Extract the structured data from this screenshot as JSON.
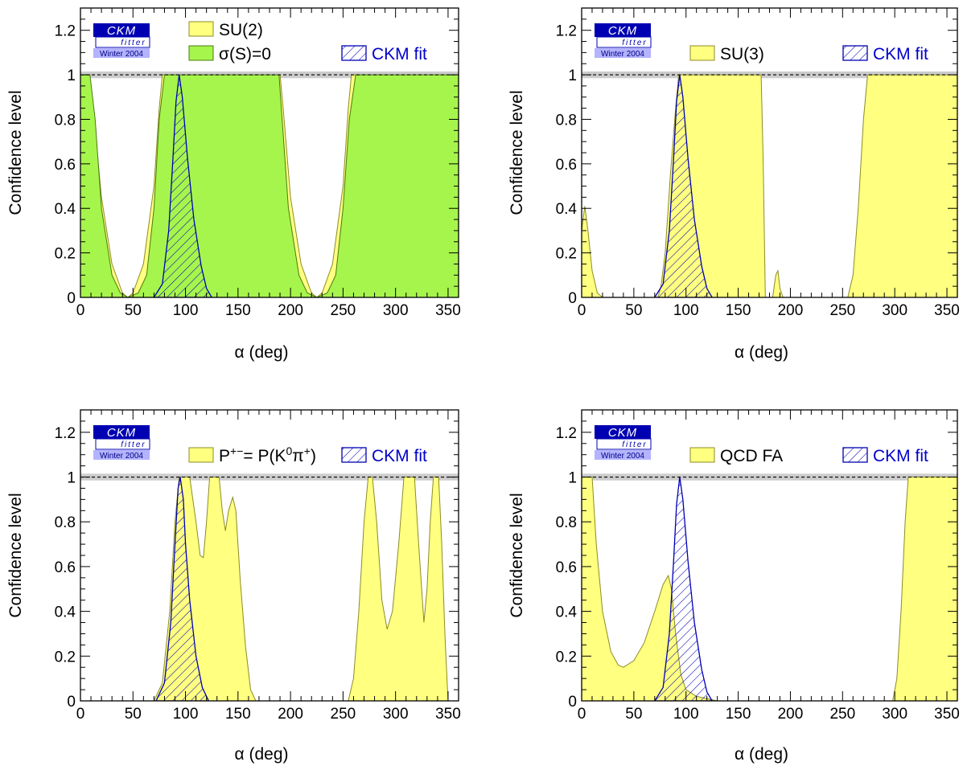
{
  "colors": {
    "su_fill": "#ffff80",
    "su_stroke": "#8c8c26",
    "green_fill": "#a6f54c",
    "green_stroke": "#4a7a10",
    "ckm_stroke": "#0000b3",
    "ckm_text": "#0000cc",
    "band": "#cccccc",
    "logo_bg": "#0000b3",
    "logo_light": "#b3b3ff"
  },
  "logo": {
    "main": "CKM",
    "sub": "fitter",
    "year": "Winter 2004"
  },
  "chart_data": [
    {
      "type": "area",
      "panel": "top-left",
      "xlabel": "α    (deg)",
      "ylabel": "Confidence level",
      "xlim": [
        0,
        360
      ],
      "ylim": [
        0,
        1.3
      ],
      "xticks": [
        0,
        50,
        100,
        150,
        200,
        250,
        300,
        350
      ],
      "yticks": [
        0,
        0.2,
        0.4,
        0.6,
        0.8,
        1,
        1.2
      ],
      "series": [
        {
          "name": "SU(2)",
          "style": "yellow",
          "points": [
            [
              0,
              1
            ],
            [
              8,
              1
            ],
            [
              12,
              0.85
            ],
            [
              20,
              0.45
            ],
            [
              30,
              0.15
            ],
            [
              40,
              0.02
            ],
            [
              45,
              0
            ],
            [
              50,
              0.02
            ],
            [
              60,
              0.15
            ],
            [
              70,
              0.5
            ],
            [
              75,
              0.85
            ],
            [
              78,
              1
            ],
            [
              190,
              1
            ],
            [
              193,
              0.85
            ],
            [
              200,
              0.45
            ],
            [
              210,
              0.15
            ],
            [
              220,
              0.02
            ],
            [
              225,
              0
            ],
            [
              230,
              0.02
            ],
            [
              240,
              0.15
            ],
            [
              250,
              0.5
            ],
            [
              255,
              0.85
            ],
            [
              258,
              1
            ],
            [
              360,
              1
            ]
          ]
        },
        {
          "name": "σ(S)=0",
          "style": "green",
          "points": [
            [
              0,
              1
            ],
            [
              9,
              1
            ],
            [
              14,
              0.8
            ],
            [
              20,
              0.4
            ],
            [
              30,
              0.1
            ],
            [
              38,
              0.02
            ],
            [
              45,
              0
            ],
            [
              55,
              0.02
            ],
            [
              63,
              0.1
            ],
            [
              70,
              0.4
            ],
            [
              75,
              0.8
            ],
            [
              80,
              1
            ],
            [
              189,
              1
            ],
            [
              192,
              0.8
            ],
            [
              198,
              0.4
            ],
            [
              208,
              0.1
            ],
            [
              216,
              0.02
            ],
            [
              225,
              0
            ],
            [
              235,
              0.02
            ],
            [
              243,
              0.1
            ],
            [
              250,
              0.4
            ],
            [
              256,
              0.8
            ],
            [
              262,
              1
            ],
            [
              360,
              1
            ]
          ]
        },
        {
          "name": "CKM fit",
          "style": "ckm",
          "points": [
            [
              70,
              0
            ],
            [
              78,
              0.06
            ],
            [
              84,
              0.3
            ],
            [
              88,
              0.62
            ],
            [
              91,
              0.88
            ],
            [
              94,
              1
            ],
            [
              97,
              0.9
            ],
            [
              102,
              0.62
            ],
            [
              108,
              0.35
            ],
            [
              115,
              0.14
            ],
            [
              120,
              0.04
            ],
            [
              125,
              0
            ]
          ]
        }
      ],
      "legend": [
        {
          "label": "SU(2)",
          "style": "yellow",
          "pos": "top-center-1"
        },
        {
          "label": "σ(S)=0",
          "style": "green",
          "pos": "top-center-2"
        },
        {
          "label": "CKM fit",
          "style": "ckm",
          "pos": "top-right-2"
        }
      ]
    },
    {
      "type": "area",
      "panel": "top-right",
      "xlabel": "α    (deg)",
      "ylabel": "Confidence level",
      "xlim": [
        0,
        360
      ],
      "ylim": [
        0,
        1.3
      ],
      "xticks": [
        0,
        50,
        100,
        150,
        200,
        250,
        300,
        350
      ],
      "yticks": [
        0,
        0.2,
        0.4,
        0.6,
        0.8,
        1,
        1.2
      ],
      "series": [
        {
          "name": "SU(3)",
          "style": "yellow",
          "points": [
            [
              0,
              0.3
            ],
            [
              3,
              0.41
            ],
            [
              6,
              0.3
            ],
            [
              10,
              0.12
            ],
            [
              15,
              0.02
            ],
            [
              20,
              0
            ],
            [
              73,
              0
            ],
            [
              76,
              0.05
            ],
            [
              80,
              0.2
            ],
            [
              85,
              0.55
            ],
            [
              90,
              0.85
            ],
            [
              93,
              1
            ],
            [
              172,
              1
            ],
            [
              174,
              0.6
            ],
            [
              176,
              0
            ],
            [
              183,
              0
            ],
            [
              186,
              0.1
            ],
            [
              188,
              0.12
            ],
            [
              190,
              0.04
            ],
            [
              193,
              0
            ],
            [
              255,
              0
            ],
            [
              260,
              0.1
            ],
            [
              265,
              0.4
            ],
            [
              270,
              0.8
            ],
            [
              274,
              1
            ],
            [
              360,
              1
            ]
          ]
        },
        {
          "name": "CKM fit",
          "style": "ckm",
          "points": [
            [
              70,
              0
            ],
            [
              78,
              0.06
            ],
            [
              84,
              0.3
            ],
            [
              88,
              0.62
            ],
            [
              91,
              0.88
            ],
            [
              94,
              1
            ],
            [
              97,
              0.9
            ],
            [
              102,
              0.62
            ],
            [
              108,
              0.35
            ],
            [
              115,
              0.14
            ],
            [
              120,
              0.04
            ],
            [
              125,
              0
            ]
          ]
        }
      ],
      "legend": [
        {
          "label": "SU(3)",
          "style": "yellow",
          "pos": "top-center-2"
        },
        {
          "label": "CKM fit",
          "style": "ckm",
          "pos": "top-right-2"
        }
      ]
    },
    {
      "type": "area",
      "panel": "bottom-left",
      "xlabel": "α    (deg)",
      "ylabel": "Confidence level",
      "xlim": [
        0,
        360
      ],
      "ylim": [
        0,
        1.3
      ],
      "xticks": [
        0,
        50,
        100,
        150,
        200,
        250,
        300,
        350
      ],
      "yticks": [
        0,
        0.2,
        0.4,
        0.6,
        0.8,
        1,
        1.2
      ],
      "series": [
        {
          "name": "P+−= P(K0π+)",
          "style": "yellow",
          "points": [
            [
              70,
              0
            ],
            [
              78,
              0.08
            ],
            [
              85,
              0.4
            ],
            [
              90,
              0.8
            ],
            [
              94,
              1
            ],
            [
              104,
              1
            ],
            [
              110,
              0.8
            ],
            [
              114,
              0.65
            ],
            [
              117,
              0.64
            ],
            [
              120,
              0.8
            ],
            [
              123,
              1
            ],
            [
              132,
              1
            ],
            [
              135,
              0.85
            ],
            [
              138,
              0.76
            ],
            [
              141,
              0.85
            ],
            [
              145,
              0.91
            ],
            [
              148,
              0.85
            ],
            [
              152,
              0.55
            ],
            [
              157,
              0.25
            ],
            [
              162,
              0.05
            ],
            [
              167,
              0
            ],
            [
              255,
              0
            ],
            [
              260,
              0.1
            ],
            [
              265,
              0.4
            ],
            [
              270,
              0.8
            ],
            [
              274,
              1
            ],
            [
              278,
              1
            ],
            [
              282,
              0.8
            ],
            [
              287,
              0.45
            ],
            [
              292,
              0.32
            ],
            [
              297,
              0.4
            ],
            [
              303,
              0.7
            ],
            [
              308,
              1
            ],
            [
              318,
              1
            ],
            [
              322,
              0.7
            ],
            [
              327,
              0.35
            ],
            [
              330,
              0.5
            ],
            [
              333,
              0.8
            ],
            [
              336,
              1
            ],
            [
              341,
              1
            ],
            [
              344,
              0.7
            ],
            [
              347,
              0.3
            ],
            [
              350,
              0
            ]
          ]
        },
        {
          "name": "CKM fit",
          "style": "ckm",
          "points": [
            [
              72,
              0
            ],
            [
              80,
              0.08
            ],
            [
              86,
              0.35
            ],
            [
              90,
              0.7
            ],
            [
              93,
              0.95
            ],
            [
              95,
              1
            ],
            [
              98,
              0.9
            ],
            [
              100,
              0.7
            ],
            [
              104,
              0.45
            ],
            [
              110,
              0.2
            ],
            [
              116,
              0.06
            ],
            [
              122,
              0
            ]
          ]
        }
      ],
      "legend": [
        {
          "label_parts": [
            "P",
            "+−",
            "= P(K",
            "0",
            "π",
            "+",
            ")"
          ],
          "style": "yellow",
          "pos": "top-center-2"
        },
        {
          "label": "CKM fit",
          "style": "ckm",
          "pos": "top-right-2"
        }
      ]
    },
    {
      "type": "area",
      "panel": "bottom-right",
      "xlabel": "α    (deg)",
      "ylabel": "Confidence level",
      "xlim": [
        0,
        360
      ],
      "ylim": [
        0,
        1.3
      ],
      "xticks": [
        0,
        50,
        100,
        150,
        200,
        250,
        300,
        350
      ],
      "yticks": [
        0,
        0.2,
        0.4,
        0.6,
        0.8,
        1,
        1.2
      ],
      "series": [
        {
          "name": "QCD FA",
          "style": "yellow",
          "points": [
            [
              0,
              1
            ],
            [
              10,
              1
            ],
            [
              14,
              0.7
            ],
            [
              20,
              0.4
            ],
            [
              28,
              0.22
            ],
            [
              35,
              0.16
            ],
            [
              40,
              0.15
            ],
            [
              50,
              0.18
            ],
            [
              60,
              0.26
            ],
            [
              70,
              0.4
            ],
            [
              78,
              0.52
            ],
            [
              83,
              0.56
            ],
            [
              86,
              0.5
            ],
            [
              90,
              0.3
            ],
            [
              95,
              0.12
            ],
            [
              100,
              0.05
            ],
            [
              110,
              0.02
            ],
            [
              120,
              0.01
            ],
            [
              130,
              0
            ],
            [
              298,
              0
            ],
            [
              302,
              0.1
            ],
            [
              306,
              0.4
            ],
            [
              310,
              0.8
            ],
            [
              313,
              1
            ],
            [
              360,
              1
            ]
          ]
        },
        {
          "name": "CKM fit",
          "style": "ckm",
          "points": [
            [
              70,
              0
            ],
            [
              78,
              0.06
            ],
            [
              84,
              0.3
            ],
            [
              88,
              0.62
            ],
            [
              91,
              0.88
            ],
            [
              94,
              1
            ],
            [
              97,
              0.9
            ],
            [
              102,
              0.62
            ],
            [
              108,
              0.35
            ],
            [
              115,
              0.14
            ],
            [
              120,
              0.04
            ],
            [
              125,
              0
            ]
          ]
        }
      ],
      "legend": [
        {
          "label": "QCD FA",
          "style": "yellow",
          "pos": "top-center-2"
        },
        {
          "label": "CKM fit",
          "style": "ckm",
          "pos": "top-right-2"
        }
      ]
    }
  ]
}
